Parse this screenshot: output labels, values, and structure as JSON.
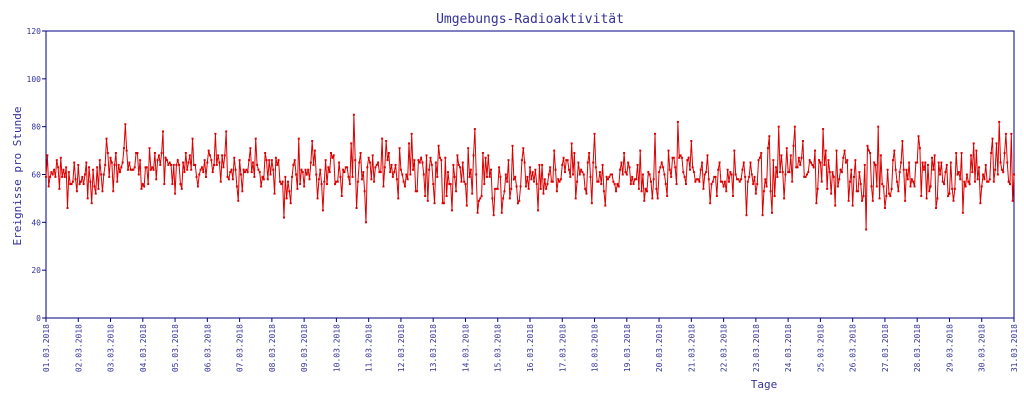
{
  "chart_data": {
    "type": "line",
    "title": "Umgebungs-Radioaktivität",
    "xlabel": "Tage",
    "ylabel": "Ereignisse pro Stunde",
    "ylim": [
      0,
      120
    ],
    "yticks": [
      0,
      20,
      40,
      60,
      80,
      100,
      120
    ],
    "xlim": [
      "01.03.2018",
      "31.03.2018"
    ],
    "xticks": [
      "01.03.2018",
      "02.03.2018",
      "03.03.2018",
      "04.03.2018",
      "05.03.2018",
      "06.03.2018",
      "07.03.2018",
      "08.03.2018",
      "09.03.2018",
      "10.03.2018",
      "11.03.2018",
      "12.03.2018",
      "13.03.2018",
      "14.03.2018",
      "15.03.2018",
      "16.03.2018",
      "17.03.2018",
      "18.03.2018",
      "19.03.2018",
      "20.03.2018",
      "21.03.2018",
      "22.03.2018",
      "23.03.2018",
      "24.03.2018",
      "25.03.2018",
      "26.03.2018",
      "27.03.2018",
      "28.03.2018",
      "29.03.2018",
      "30.03.2018",
      "31.03.2018"
    ],
    "grid": false,
    "legend": "none",
    "series": [
      {
        "color": "#dd0000",
        "sampling": "hourly",
        "summary": {
          "typical_range": [
            50,
            72
          ],
          "mean": 60,
          "max": 85,
          "min": 37
        },
        "daily_mean": [
          59,
          61,
          64,
          64,
          62,
          60,
          63,
          59,
          61,
          63,
          63,
          62,
          58,
          59,
          57,
          59,
          61,
          59,
          60,
          62,
          60,
          59,
          61,
          63,
          60,
          59,
          59,
          60,
          58,
          63,
          60
        ],
        "daily_max": [
          68,
          75,
          81,
          78,
          75,
          78,
          75,
          75,
          74,
          85,
          75,
          77,
          72,
          79,
          72,
          70,
          73,
          77,
          77,
          82,
          74,
          70,
          80,
          80,
          79,
          80,
          74,
          76,
          73,
          82,
          77
        ],
        "daily_min": [
          46,
          48,
          53,
          55,
          52,
          49,
          53,
          42,
          45,
          40,
          50,
          49,
          45,
          43,
          44,
          45,
          48,
          47,
          49,
          51,
          48,
          43,
          43,
          48,
          47,
          37,
          46,
          46,
          44,
          49,
          51
        ]
      }
    ]
  }
}
